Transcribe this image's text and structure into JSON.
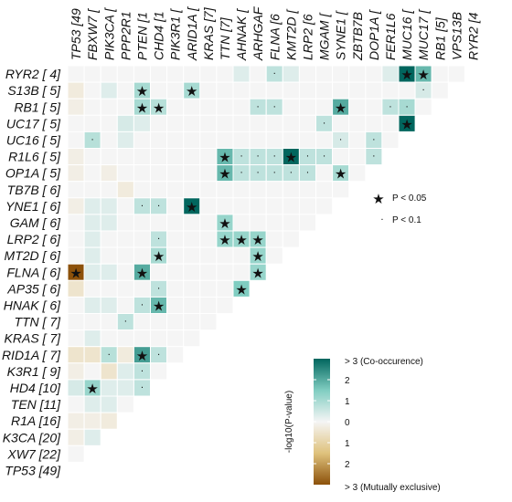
{
  "chart_data": {
    "type": "heatmap",
    "title": "",
    "genes": [
      "RYR2 [4]",
      "VPS13B [5]",
      "RB1 [5]",
      "MUC17 [5]",
      "MUC16 [5]",
      "FER1L6 [5]",
      "DOP1A [5]",
      "ZBTB7B [6]",
      "SYNE1 [6]",
      "MGAM [6]",
      "LRP2 [6]",
      "KMT2D [6]",
      "FLNA [6]",
      "ARHGAP35 [6]",
      "AHNAK [6]",
      "TTN [7]",
      "KRAS [7]",
      "ARID1A [7]",
      "PIK3R1 [9]",
      "CHD4 [10]",
      "PTEN [11]",
      "PPP2R1A [16]",
      "PIK3CA [20]",
      "FBXW7 [22]",
      "TP53 [49]"
    ],
    "row_labels_shown": [
      "RYR2 [ 4]",
      "S13B [ 5]",
      "RB1 [ 5]",
      "UC17 [ 5]",
      "UC16 [ 5]",
      "R1L6 [ 5]",
      "OP1A [ 5]",
      "TB7B [ 6]",
      "YNE1 [ 6]",
      "GAM [ 6]",
      "LRP2 [ 6]",
      "MT2D [ 6]",
      "FLNA [ 6]",
      "AP35 [ 6]",
      "HNAK [ 6]",
      "TTN [ 7]",
      "KRAS [ 7]",
      "RID1A [ 7]",
      "K3R1 [ 9]",
      "HD4 [10]",
      "TEN [11]",
      "R1A [16]",
      "K3CA [20]",
      "XW7 [22]",
      "TP53 [49]"
    ],
    "col_labels_shown": [
      "TP53 [49",
      "FBXW7 [",
      "PIK3CA [",
      "PPP2R1",
      "PTEN [1",
      "CHD4 [1",
      "PIK3R1 [",
      "ARID1A [",
      "KRAS [7]",
      "TTN [7]",
      "AHNAK [",
      "ARHGAF",
      "FLNA [6",
      "KMT2D [",
      "LRP2 [6",
      "MGAM [",
      "SYNE1 [",
      "ZBTB7B",
      "DOP1A [",
      "FER1L6",
      "MUC16 [",
      "MUC17 [",
      "RB1 [5]",
      "VPS13B",
      "RYR2 [4"
    ],
    "cells": [
      {
        "row": 0,
        "col": 12,
        "v": 0.7,
        "sig": "dot"
      },
      {
        "row": 0,
        "col": 20,
        "v": 3.5,
        "sig": "star"
      },
      {
        "row": 0,
        "col": 21,
        "v": 1.8,
        "sig": "star"
      },
      {
        "row": 0,
        "col": 10,
        "v": 0.3
      },
      {
        "row": 0,
        "col": 13,
        "v": 0.3
      },
      {
        "row": 0,
        "col": 19,
        "v": 0.3
      },
      {
        "row": 1,
        "col": 4,
        "v": 1.0,
        "sig": "star"
      },
      {
        "row": 1,
        "col": 7,
        "v": 1.0,
        "sig": "star"
      },
      {
        "row": 1,
        "col": 21,
        "v": 0.4,
        "sig": "dot"
      },
      {
        "row": 1,
        "col": 0,
        "v": -0.3
      },
      {
        "row": 1,
        "col": 2,
        "v": 0.3
      },
      {
        "row": 2,
        "col": 4,
        "v": 1.0,
        "sig": "star"
      },
      {
        "row": 2,
        "col": 5,
        "v": 0.8,
        "sig": "star"
      },
      {
        "row": 2,
        "col": 11,
        "v": 0.7,
        "sig": "dot"
      },
      {
        "row": 2,
        "col": 12,
        "v": 0.7,
        "sig": "dot"
      },
      {
        "row": 2,
        "col": 16,
        "v": 2.0,
        "sig": "star"
      },
      {
        "row": 2,
        "col": 19,
        "v": 0.7,
        "sig": "dot"
      },
      {
        "row": 2,
        "col": 20,
        "v": 1.0,
        "sig": "dot"
      },
      {
        "row": 2,
        "col": 0,
        "v": -0.2
      },
      {
        "row": 3,
        "col": 15,
        "v": 0.7,
        "sig": "dot"
      },
      {
        "row": 3,
        "col": 20,
        "v": 3.2,
        "sig": "star"
      },
      {
        "row": 3,
        "col": 3,
        "v": 0.4
      },
      {
        "row": 3,
        "col": 4,
        "v": 0.3
      },
      {
        "row": 4,
        "col": 1,
        "v": 0.8,
        "sig": "dot"
      },
      {
        "row": 4,
        "col": 16,
        "v": 0.4,
        "sig": "dot"
      },
      {
        "row": 4,
        "col": 18,
        "v": 0.7,
        "sig": "dot"
      },
      {
        "row": 4,
        "col": 3,
        "v": 0.3
      },
      {
        "row": 5,
        "col": 9,
        "v": 1.8,
        "sig": "star"
      },
      {
        "row": 5,
        "col": 10,
        "v": 0.7,
        "sig": "dot"
      },
      {
        "row": 5,
        "col": 11,
        "v": 0.7,
        "sig": "dot"
      },
      {
        "row": 5,
        "col": 12,
        "v": 0.7,
        "sig": "dot"
      },
      {
        "row": 5,
        "col": 13,
        "v": 3.5,
        "sig": "star"
      },
      {
        "row": 5,
        "col": 14,
        "v": 0.7,
        "sig": "dot"
      },
      {
        "row": 5,
        "col": 15,
        "v": 0.7,
        "sig": "dot"
      },
      {
        "row": 5,
        "col": 18,
        "v": 0.7,
        "sig": "dot"
      },
      {
        "row": 5,
        "col": 0,
        "v": -0.2
      },
      {
        "row": 6,
        "col": 9,
        "v": 1.8,
        "sig": "star"
      },
      {
        "row": 6,
        "col": 10,
        "v": 0.7,
        "sig": "dot"
      },
      {
        "row": 6,
        "col": 11,
        "v": 0.7,
        "sig": "dot"
      },
      {
        "row": 6,
        "col": 12,
        "v": 0.7,
        "sig": "dot"
      },
      {
        "row": 6,
        "col": 13,
        "v": 0.7,
        "sig": "dot"
      },
      {
        "row": 6,
        "col": 14,
        "v": 0.7,
        "sig": "dot"
      },
      {
        "row": 6,
        "col": 16,
        "v": 1.0,
        "sig": "star"
      },
      {
        "row": 6,
        "col": 0,
        "v": -0.2
      },
      {
        "row": 6,
        "col": 2,
        "v": -0.2
      },
      {
        "row": 7,
        "col": 3,
        "v": -0.3
      },
      {
        "row": 8,
        "col": 4,
        "v": 0.7,
        "sig": "dot"
      },
      {
        "row": 8,
        "col": 5,
        "v": 0.7,
        "sig": "dot"
      },
      {
        "row": 8,
        "col": 7,
        "v": 3.5,
        "sig": "star"
      },
      {
        "row": 8,
        "col": 0,
        "v": -0.2
      },
      {
        "row": 8,
        "col": 1,
        "v": 0.3
      },
      {
        "row": 8,
        "col": 2,
        "v": 0.3
      },
      {
        "row": 9,
        "col": 9,
        "v": 1.2,
        "sig": "star"
      },
      {
        "row": 9,
        "col": 1,
        "v": 0.3
      },
      {
        "row": 9,
        "col": 2,
        "v": 0.3
      },
      {
        "row": 10,
        "col": 5,
        "v": 0.7,
        "sig": "dot"
      },
      {
        "row": 10,
        "col": 9,
        "v": 1.2,
        "sig": "star"
      },
      {
        "row": 10,
        "col": 10,
        "v": 1.2,
        "sig": "star"
      },
      {
        "row": 10,
        "col": 11,
        "v": 1.2,
        "sig": "star"
      },
      {
        "row": 10,
        "col": 1,
        "v": 0.3
      },
      {
        "row": 11,
        "col": 5,
        "v": 1.0,
        "sig": "star"
      },
      {
        "row": 11,
        "col": 11,
        "v": 1.2,
        "sig": "star"
      },
      {
        "row": 11,
        "col": 1,
        "v": 0.3
      },
      {
        "row": 12,
        "col": 0,
        "v": -3.5,
        "sig": "star"
      },
      {
        "row": 12,
        "col": 4,
        "v": 2.0,
        "sig": "star"
      },
      {
        "row": 12,
        "col": 11,
        "v": 1.2,
        "sig": "star"
      },
      {
        "row": 12,
        "col": 1,
        "v": 0.3
      },
      {
        "row": 12,
        "col": 2,
        "v": 0.3
      },
      {
        "row": 13,
        "col": 5,
        "v": 0.7,
        "sig": "dot"
      },
      {
        "row": 13,
        "col": 10,
        "v": 1.5,
        "sig": "star"
      },
      {
        "row": 13,
        "col": 0,
        "v": -0.5
      },
      {
        "row": 14,
        "col": 4,
        "v": 0.7,
        "sig": "dot"
      },
      {
        "row": 14,
        "col": 5,
        "v": 1.8,
        "sig": "star"
      },
      {
        "row": 14,
        "col": 1,
        "v": 0.3
      },
      {
        "row": 14,
        "col": 2,
        "v": 0.3
      },
      {
        "row": 15,
        "col": 3,
        "v": 0.7,
        "sig": "dot"
      },
      {
        "row": 15,
        "col": 9,
        "v": -0.3
      },
      {
        "row": 16,
        "col": 1,
        "v": 0.3
      },
      {
        "row": 17,
        "col": 2,
        "v": 0.8,
        "sig": "dot"
      },
      {
        "row": 17,
        "col": 4,
        "v": 2.2,
        "sig": "star"
      },
      {
        "row": 17,
        "col": 5,
        "v": 0.7,
        "sig": "dot"
      },
      {
        "row": 17,
        "col": 0,
        "v": -0.5
      },
      {
        "row": 17,
        "col": 1,
        "v": -0.5
      },
      {
        "row": 17,
        "col": 3,
        "v": -0.3
      },
      {
        "row": 18,
        "col": 4,
        "v": 0.7,
        "sig": "dot"
      },
      {
        "row": 18,
        "col": 0,
        "v": -0.2
      },
      {
        "row": 18,
        "col": 2,
        "v": -0.5
      },
      {
        "row": 18,
        "col": 3,
        "v": 0.3
      },
      {
        "row": 19,
        "col": 1,
        "v": 1.2,
        "sig": "star"
      },
      {
        "row": 19,
        "col": 4,
        "v": 0.7,
        "sig": "dot"
      },
      {
        "row": 19,
        "col": 0,
        "v": 0.4
      },
      {
        "row": 19,
        "col": 2,
        "v": 0.3
      },
      {
        "row": 19,
        "col": 3,
        "v": 0.3
      },
      {
        "row": 20,
        "col": 1,
        "v": 0.3
      },
      {
        "row": 20,
        "col": 2,
        "v": 0.3
      },
      {
        "row": 21,
        "col": 0,
        "v": -0.2
      },
      {
        "row": 21,
        "col": 1,
        "v": -0.2
      },
      {
        "row": 21,
        "col": 2,
        "v": -0.3
      },
      {
        "row": 22,
        "col": 0,
        "v": -0.2
      },
      {
        "row": 22,
        "col": 1,
        "v": 0.3
      }
    ],
    "significance_legend": [
      {
        "symbol": "★",
        "label": "P < 0.05"
      },
      {
        "symbol": "·",
        "label": "P < 0.1"
      }
    ],
    "colorbar": {
      "title": "-log10(P-value)",
      "range": [
        -3,
        3
      ],
      "top_label": "> 3 (Co-occurence)",
      "bottom_label": "> 3 (Mutually exclusive)",
      "ticks": [
        {
          "value": 2,
          "label": "2"
        },
        {
          "value": 1,
          "label": "1"
        },
        {
          "value": 0,
          "label": "0"
        },
        {
          "value": -1,
          "label": "1"
        },
        {
          "value": -2,
          "label": "2"
        }
      ],
      "colors": {
        "negative_max": "#8c510a",
        "negative_mid": "#dfc27d",
        "neutral": "#f5f5f5",
        "positive_mid": "#80cdc1",
        "positive_max": "#01665e"
      }
    }
  }
}
